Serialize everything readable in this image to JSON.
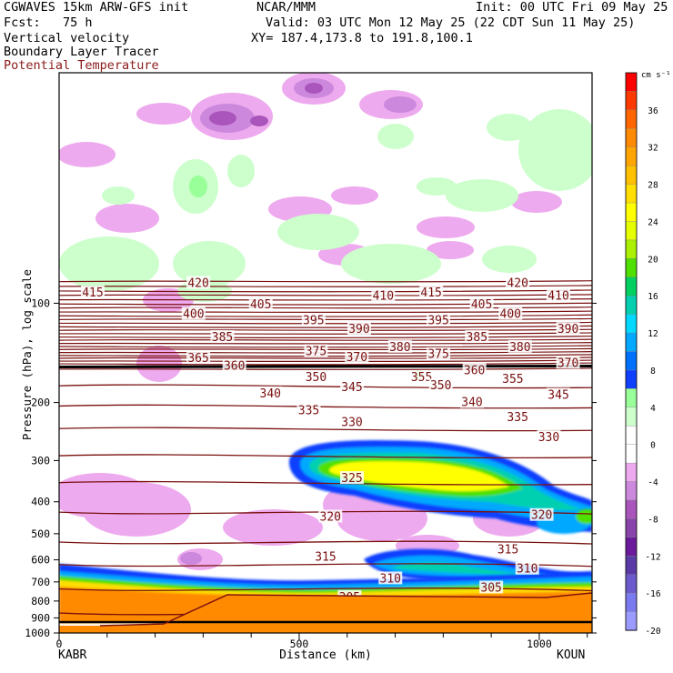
{
  "header": {
    "model": "CGWAVES 15km ARW-GFS init",
    "org": "NCAR/MMM",
    "init": "Init: 00 UTC Fri 09 May 25",
    "fcst": "Fcst:   75 h",
    "valid": "Valid: 03 UTC Mon 12 May 25 (22 CDT Sun 11 May 25)",
    "field1": "Vertical velocity",
    "xy": "XY= 187.4,173.8 to 191.8,100.1",
    "field2": "Boundary Layer Tracer",
    "field3": "Potential Temperature"
  },
  "colors": {
    "theta": "#7a1010",
    "field3_text": "#8b1a1a",
    "terrain": "#000000"
  },
  "chart_data": {
    "type": "heatmap",
    "xlabel": "Distance (km)",
    "ylabel": "Pressure (hPa), log scale",
    "xlim": [
      0,
      1110
    ],
    "ylim": [
      1000,
      20
    ],
    "y_scale": "log",
    "x_ticks": [
      "0",
      "500",
      "1000"
    ],
    "x_tick_values": [
      0,
      500,
      1000
    ],
    "y_ticks": [
      "100",
      "200",
      "300",
      "400",
      "500",
      "600",
      "700",
      "800",
      "900",
      "1000"
    ],
    "y_tick_values": [
      100,
      200,
      300,
      400,
      500,
      600,
      700,
      800,
      900,
      1000
    ],
    "start_label": "KABR",
    "end_label": "KOUN",
    "colorbar": {
      "unit": "cm s⁻¹",
      "labels": [
        "36",
        "32",
        "28",
        "24",
        "20",
        "16",
        "12",
        "8",
        "4",
        "0",
        "-4",
        "-8",
        "-12",
        "-16",
        "-20"
      ],
      "colors": [
        "#ff0000",
        "#ff3a00",
        "#ff6500",
        "#ff8a00",
        "#ffa500",
        "#ffc000",
        "#ffde00",
        "#ffff00",
        "#e6ff00",
        "#aaf000",
        "#4fe000",
        "#00d060",
        "#00d0b0",
        "#00d8ff",
        "#00a8ff",
        "#0070ff",
        "#1040ff",
        "#99ff99",
        "#ccffcc",
        "#ffffff",
        "#ffffff",
        "#eeaaee",
        "#cc88dd",
        "#aa55bb",
        "#8844aa",
        "#6a1a9a",
        "#5a3aa6",
        "#6a5acd",
        "#7a7af0",
        "#9a9aff"
      ]
    },
    "theta_labels": [
      {
        "text": "415",
        "x": 70,
        "p": 93
      },
      {
        "text": "420",
        "x": 290,
        "p": 87
      },
      {
        "text": "400",
        "x": 280,
        "p": 108
      },
      {
        "text": "405",
        "x": 420,
        "p": 101
      },
      {
        "text": "410",
        "x": 675,
        "p": 95
      },
      {
        "text": "415",
        "x": 775,
        "p": 93
      },
      {
        "text": "420",
        "x": 955,
        "p": 87
      },
      {
        "text": "410",
        "x": 1040,
        "p": 95
      },
      {
        "text": "405",
        "x": 880,
        "p": 101
      },
      {
        "text": "395",
        "x": 530,
        "p": 113
      },
      {
        "text": "395",
        "x": 790,
        "p": 113
      },
      {
        "text": "400",
        "x": 940,
        "p": 108
      },
      {
        "text": "385",
        "x": 340,
        "p": 127
      },
      {
        "text": "390",
        "x": 625,
        "p": 120
      },
      {
        "text": "385",
        "x": 870,
        "p": 127
      },
      {
        "text": "390",
        "x": 1060,
        "p": 120
      },
      {
        "text": "375",
        "x": 535,
        "p": 140
      },
      {
        "text": "380",
        "x": 710,
        "p": 136
      },
      {
        "text": "380",
        "x": 960,
        "p": 136
      },
      {
        "text": "375",
        "x": 790,
        "p": 143
      },
      {
        "text": "370",
        "x": 620,
        "p": 146
      },
      {
        "text": "370",
        "x": 1060,
        "p": 152
      },
      {
        "text": "365",
        "x": 290,
        "p": 147
      },
      {
        "text": "360",
        "x": 365,
        "p": 155
      },
      {
        "text": "360",
        "x": 865,
        "p": 160
      },
      {
        "text": "355",
        "x": 755,
        "p": 168
      },
      {
        "text": "355",
        "x": 945,
        "p": 170
      },
      {
        "text": "350",
        "x": 535,
        "p": 168
      },
      {
        "text": "350",
        "x": 795,
        "p": 178
      },
      {
        "text": "345",
        "x": 610,
        "p": 180
      },
      {
        "text": "345",
        "x": 1040,
        "p": 190
      },
      {
        "text": "340",
        "x": 440,
        "p": 188
      },
      {
        "text": "340",
        "x": 860,
        "p": 200
      },
      {
        "text": "335",
        "x": 520,
        "p": 212
      },
      {
        "text": "335",
        "x": 955,
        "p": 222
      },
      {
        "text": "330",
        "x": 610,
        "p": 230
      },
      {
        "text": "330",
        "x": 1020,
        "p": 255
      },
      {
        "text": "325",
        "x": 610,
        "p": 340
      },
      {
        "text": "320",
        "x": 565,
        "p": 445
      },
      {
        "text": "320",
        "x": 1005,
        "p": 440
      },
      {
        "text": "315",
        "x": 555,
        "p": 588
      },
      {
        "text": "315",
        "x": 935,
        "p": 560
      },
      {
        "text": "310",
        "x": 690,
        "p": 685
      },
      {
        "text": "310",
        "x": 975,
        "p": 640
      },
      {
        "text": "305",
        "x": 605,
        "p": 780
      },
      {
        "text": "305",
        "x": 900,
        "p": 730
      }
    ]
  }
}
